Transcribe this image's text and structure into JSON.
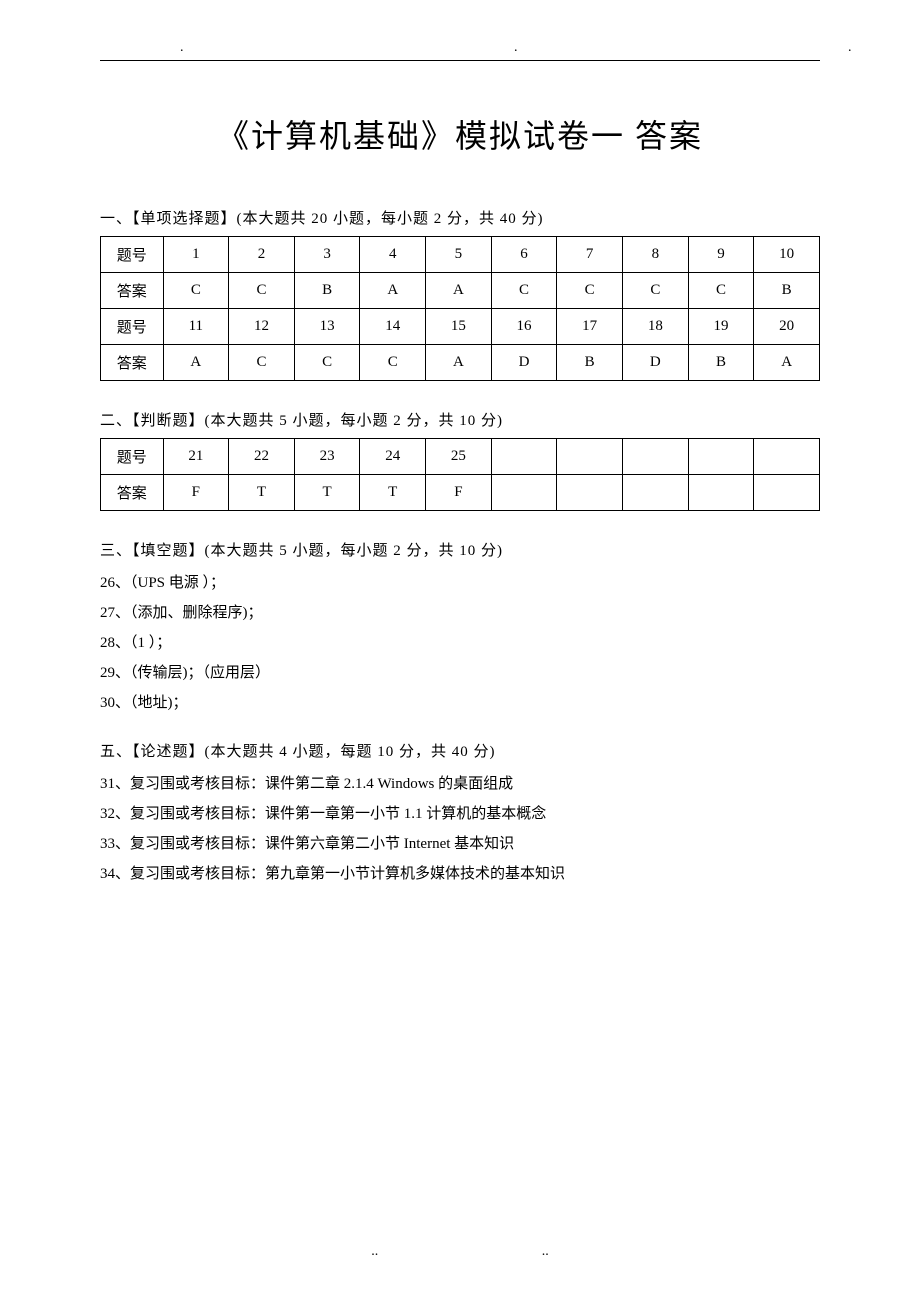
{
  "header": {
    "dots": ". . ."
  },
  "title": "《计算机基础》模拟试卷一 答案",
  "section1": {
    "heading": "一、【单项选择题】(本大题共 20 小题，每小题 2 分，共 40 分)",
    "row1_label": "题号",
    "row1_values": [
      "1",
      "2",
      "3",
      "4",
      "5",
      "6",
      "7",
      "8",
      "9",
      "10"
    ],
    "row2_label": "答案",
    "row2_values": [
      "C",
      "C",
      "B",
      "A",
      "A",
      "C",
      "C",
      "C",
      "C",
      "B"
    ],
    "row3_label": "题号",
    "row3_values": [
      "11",
      "12",
      "13",
      "14",
      "15",
      "16",
      "17",
      "18",
      "19",
      "20"
    ],
    "row4_label": "答案",
    "row4_values": [
      "A",
      "C",
      "C",
      "C",
      "A",
      "D",
      "B",
      "D",
      "B",
      "A"
    ]
  },
  "section2": {
    "heading": "二、【判断题】(本大题共 5 小题，每小题 2 分，共 10 分)",
    "row1_label": "题号",
    "row1_values": [
      "21",
      "22",
      "23",
      "24",
      "25",
      "",
      "",
      "",
      "",
      ""
    ],
    "row2_label": "答案",
    "row2_values": [
      "F",
      "T",
      "T",
      "T",
      "F",
      "",
      "",
      "",
      "",
      ""
    ]
  },
  "section3": {
    "heading": "三、【填空题】(本大题共 5 小题，每小题 2 分，共 10 分)",
    "items": [
      "26、（UPS 电源 ）；",
      "27、（添加、删除程序)；",
      "28、（1 ）；",
      "29、（传输层)；（应用层）",
      "30、（地址)；"
    ]
  },
  "section5": {
    "heading": "五、【论述题】(本大题共 4 小题，每题 10 分，共 40 分)",
    "items": [
      "31、复习围或考核目标：课件第二章 2.1.4 Windows 的桌面组成",
      "32、复习围或考核目标：课件第一章第一小节 1.1 计算机的基本概念",
      "33、复习围或考核目标：课件第六章第二小节 Internet 基本知识",
      "34、复习围或考核目标：第九章第一小节计算机多媒体技术的基本知识"
    ]
  },
  "footer": {
    "dot_left": "..",
    "dot_right": ".."
  }
}
